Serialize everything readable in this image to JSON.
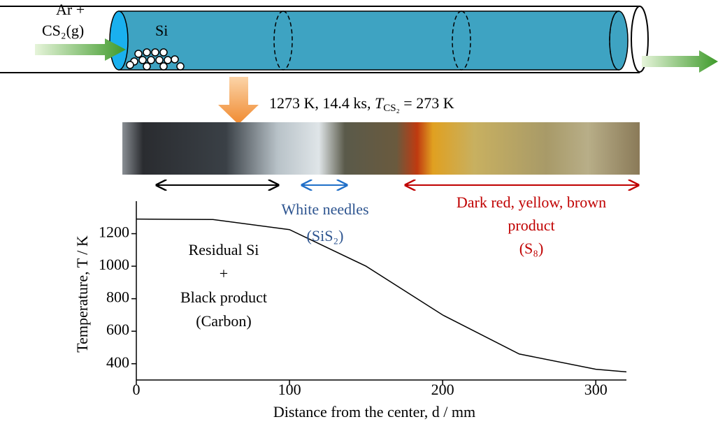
{
  "diagram": {
    "gas_in": [
      "Ar +",
      "CS₂(g)"
    ],
    "sample": "Si",
    "condition": {
      "prefix": "1273 K, 14.4 ks, ",
      "symbol": "T",
      "subscript": "CS₂",
      "suffix": " = 273 K"
    }
  },
  "chart_data": {
    "type": "line",
    "x": [
      0,
      50,
      100,
      150,
      200,
      250,
      300,
      320
    ],
    "values": [
      1290,
      1287,
      1225,
      1000,
      700,
      460,
      366,
      350
    ],
    "color": "#000000",
    "xlim": [
      0,
      320
    ],
    "ylim": [
      300,
      1400
    ],
    "xticks": [
      0,
      100,
      200,
      300
    ],
    "yticks": [
      400,
      600,
      800,
      1000,
      1200
    ],
    "xlabel": "Distance from the center, d / mm",
    "ylabel": "Temperature, T / K",
    "annotations": [
      {
        "lines": [
          "Residual Si",
          "+",
          "Black product",
          "(Carbon)"
        ],
        "color": "#000000"
      },
      {
        "lines": [
          "White needles",
          "(SiS₂)"
        ],
        "color": "#2e5590"
      },
      {
        "lines": [
          "Dark red, yellow, brown",
          "product",
          "(S₈)"
        ],
        "color": "#c00000"
      }
    ]
  }
}
